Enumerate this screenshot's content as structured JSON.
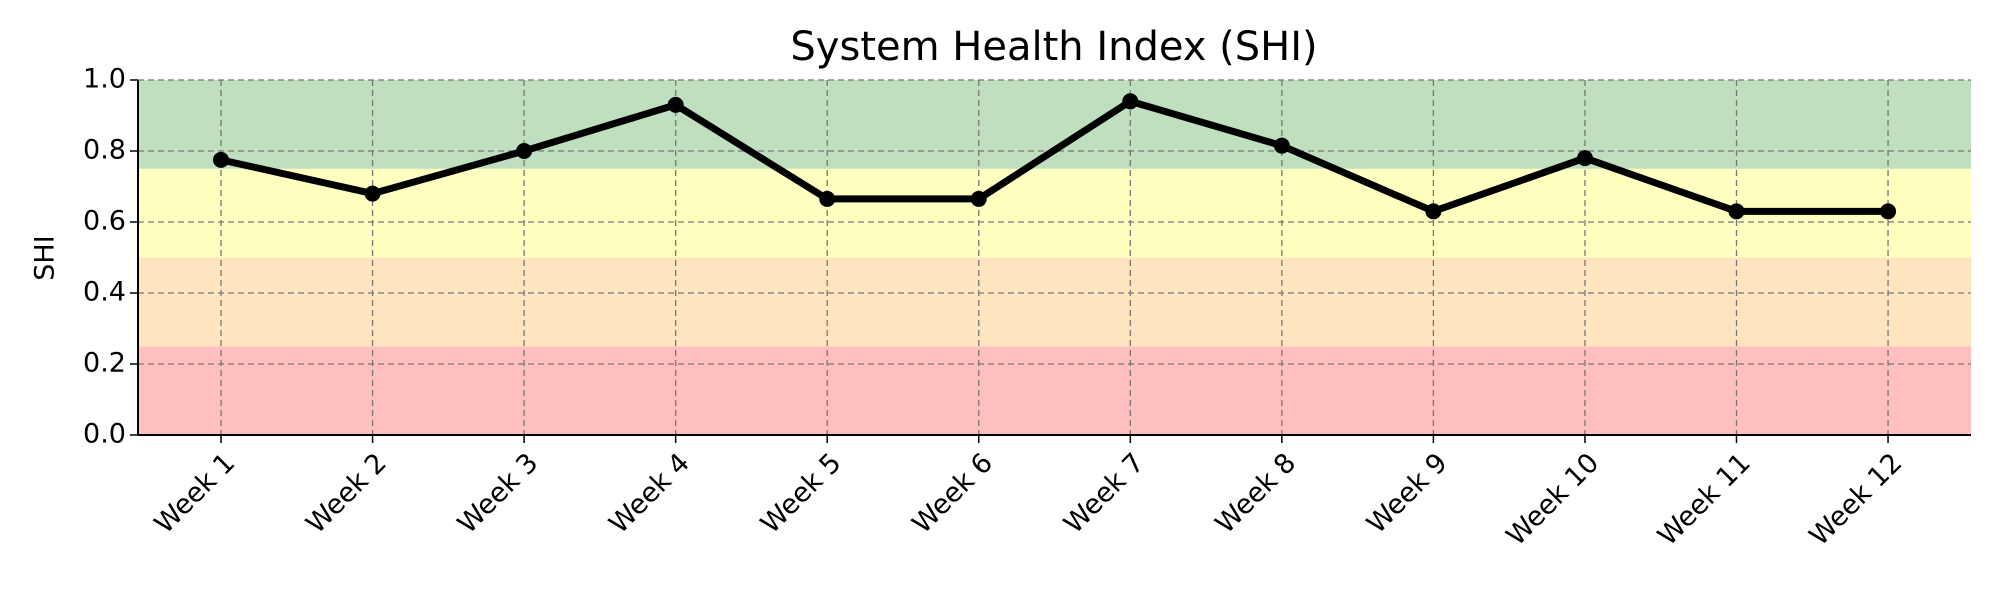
{
  "chart_data": {
    "type": "line",
    "title": "System Health Index (SHI)",
    "ylabel": "SHI",
    "categories": [
      "Week 1",
      "Week 2",
      "Week 3",
      "Week 4",
      "Week 5",
      "Week 6",
      "Week 7",
      "Week 8",
      "Week 9",
      "Week 10",
      "Week 11",
      "Week 12"
    ],
    "values": [
      0.775,
      0.68,
      0.8,
      0.93,
      0.665,
      0.665,
      0.94,
      0.815,
      0.63,
      0.78,
      0.63,
      0.63
    ],
    "color": "#000000",
    "ylim": [
      0,
      1
    ],
    "yticks": [
      {
        "value": 0,
        "label": "0.0"
      },
      0.2,
      0.4,
      0.6,
      0.8,
      {
        "value": 1,
        "label": "1.0"
      }
    ],
    "grid": true,
    "bands": [
      {
        "from": 0,
        "to": 0.25,
        "color": "#ffbfbf"
      },
      {
        "from": 0.25,
        "to": 0.5,
        "color": "#ffe5bf"
      },
      {
        "from": 0.5,
        "to": 0.75,
        "color": "#ffffbf"
      },
      {
        "from": 0.75,
        "to": 1,
        "color": "#bfdfbf"
      }
    ]
  }
}
